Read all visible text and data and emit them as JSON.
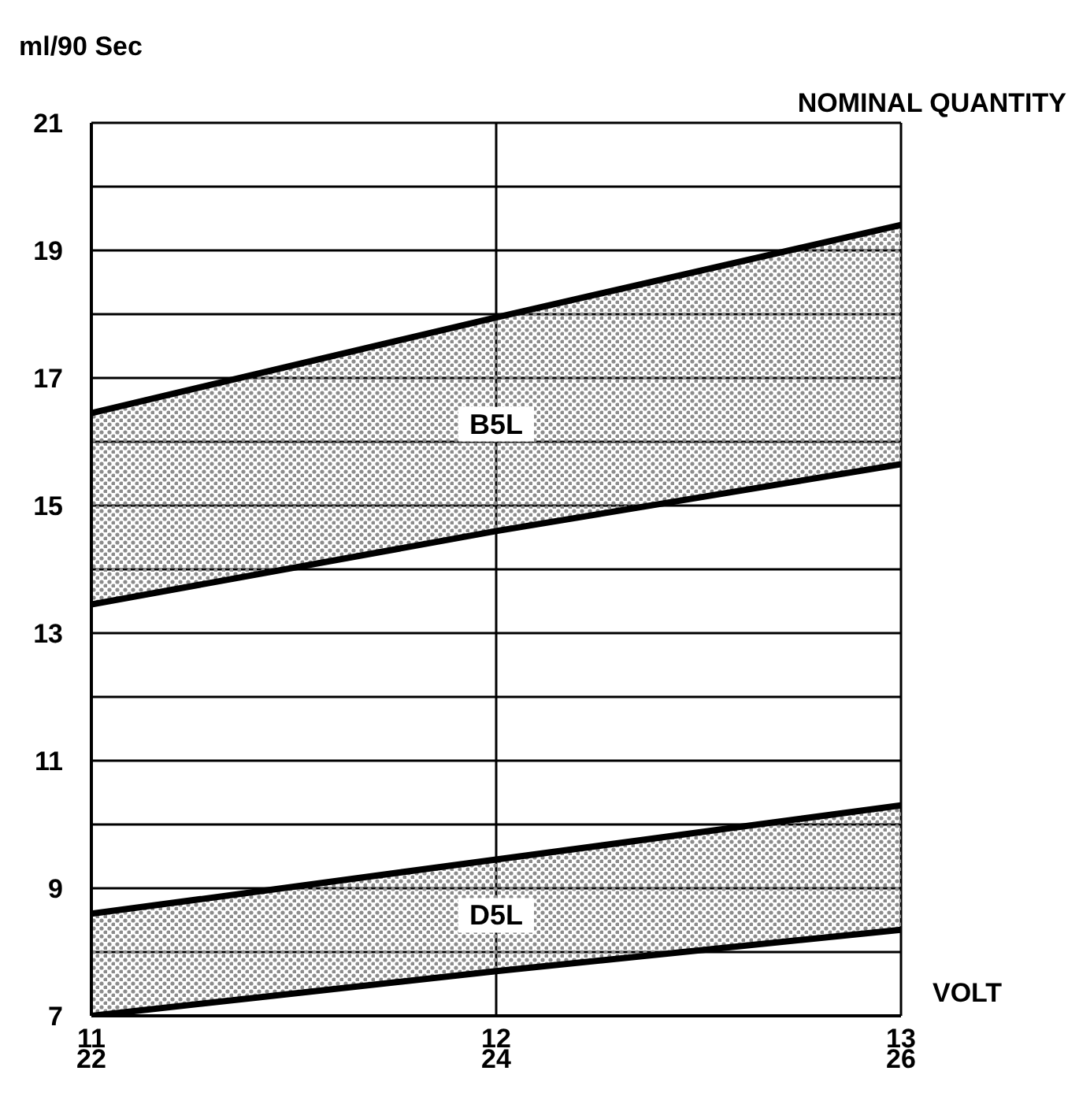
{
  "chart_data": {
    "type": "line",
    "title": "NOMINAL QUANTITY",
    "ylabel": "ml/90 Sec",
    "xlabel": "VOLT",
    "x": [
      11,
      12,
      13
    ],
    "xlim": [
      11,
      13
    ],
    "xticks": [
      11,
      12,
      13
    ],
    "x2lim": [
      22,
      26
    ],
    "x2ticks": [
      22,
      24,
      26
    ],
    "ylim": [
      7,
      21
    ],
    "yticks": [
      7,
      {
        "value": 8,
        "label": null
      },
      9,
      {
        "value": 10,
        "label": null
      },
      11,
      {
        "value": 12,
        "label": null
      },
      13,
      {
        "value": 14,
        "label": null
      },
      15,
      {
        "value": 16,
        "label": null
      },
      17,
      {
        "value": 18,
        "label": null
      },
      19,
      {
        "value": 20,
        "label": null
      },
      21
    ],
    "grid": true,
    "legend": false,
    "marker": "none",
    "line_style": "solid",
    "series": [
      {
        "name": "B5L",
        "color": "#000000",
        "values": [
          16.45,
          17.95,
          19.4
        ],
        "lower": [
          13.45,
          14.6,
          15.65
        ],
        "upper": [
          16.45,
          17.95,
          19.4
        ]
      },
      {
        "color": "#000000",
        "values": [
          13.45,
          14.6,
          15.65
        ]
      },
      {
        "name": "D5L",
        "color": "#000000",
        "values": [
          8.6,
          9.45,
          10.3
        ],
        "lower": [
          7.0,
          7.7,
          8.35
        ],
        "upper": [
          8.6,
          9.45,
          10.3
        ]
      },
      {
        "color": "#000000",
        "values": [
          7.0,
          7.7,
          8.35
        ]
      }
    ]
  }
}
